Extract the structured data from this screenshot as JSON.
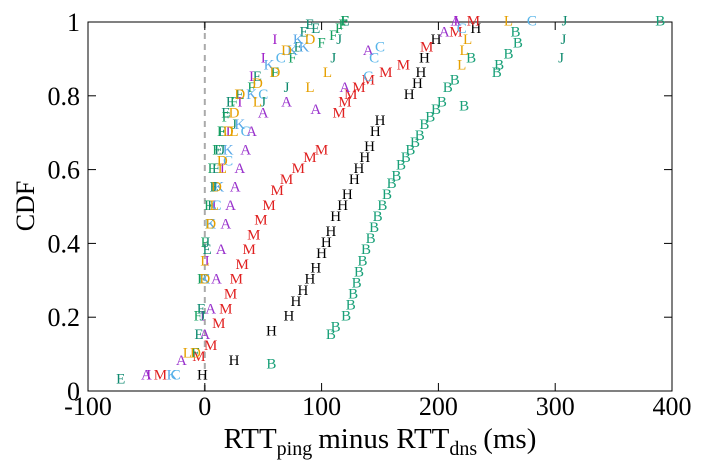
{
  "chart_data": {
    "type": "scatter",
    "ylabel": "CDF",
    "xlabel": [
      "RTT",
      "ping",
      "minus RTT",
      "dns",
      "(ms)"
    ],
    "xlim": [
      -100,
      400
    ],
    "xticks": [
      -100,
      0,
      100,
      200,
      300,
      400
    ],
    "ylim": [
      0,
      1
    ],
    "yticks": [
      0,
      0.2,
      0.4,
      0.6,
      0.8,
      1
    ],
    "vline": 0,
    "series": [
      {
        "name": "B",
        "color": "#18a078",
        "x": [
          57,
          108,
          112,
          121,
          125,
          127,
          130,
          132,
          135,
          138,
          142,
          145,
          148,
          152,
          156,
          160,
          164,
          168,
          172,
          176,
          180,
          184,
          188,
          193,
          198,
          203,
          208,
          214,
          222,
          228,
          250,
          252,
          260,
          268,
          266,
          390
        ],
        "y": [
          0.07,
          0.15,
          0.17,
          0.2,
          0.23,
          0.26,
          0.29,
          0.32,
          0.35,
          0.38,
          0.41,
          0.44,
          0.47,
          0.5,
          0.53,
          0.56,
          0.58,
          0.61,
          0.63,
          0.65,
          0.67,
          0.69,
          0.72,
          0.74,
          0.76,
          0.78,
          0.82,
          0.84,
          0.77,
          0.9,
          0.86,
          0.88,
          0.91,
          0.94,
          0.97,
          1.0
        ]
      },
      {
        "name": "H",
        "color": "#000000",
        "x": [
          -2,
          25,
          57,
          72,
          78,
          84,
          90,
          95,
          100,
          104,
          108,
          112,
          118,
          122,
          128,
          132,
          137,
          141,
          146,
          150,
          175,
          182,
          185,
          188,
          198,
          232
        ],
        "y": [
          0.04,
          0.08,
          0.16,
          0.2,
          0.24,
          0.27,
          0.3,
          0.33,
          0.37,
          0.4,
          0.43,
          0.47,
          0.5,
          0.53,
          0.57,
          0.6,
          0.63,
          0.66,
          0.7,
          0.73,
          0.8,
          0.83,
          0.86,
          0.9,
          0.95,
          0.98
        ]
      },
      {
        "name": "M",
        "color": "#e02020",
        "x": [
          -38,
          -5,
          5,
          12,
          18,
          22,
          27,
          32,
          38,
          42,
          48,
          55,
          62,
          70,
          80,
          90,
          100,
          115,
          120,
          125,
          132,
          140,
          155,
          170,
          190,
          215,
          230
        ],
        "y": [
          0.04,
          0.09,
          0.12,
          0.18,
          0.22,
          0.26,
          0.3,
          0.34,
          0.38,
          0.42,
          0.46,
          0.5,
          0.54,
          0.57,
          0.6,
          0.63,
          0.65,
          0.75,
          0.78,
          0.8,
          0.82,
          0.84,
          0.86,
          0.88,
          0.93,
          0.97,
          1.0
        ]
      },
      {
        "name": "A",
        "color": "#9932cc",
        "x": [
          -50,
          -20,
          0,
          5,
          10,
          14,
          18,
          22,
          26,
          30,
          35,
          40,
          50,
          70,
          95,
          120,
          140,
          205,
          215
        ],
        "y": [
          0.04,
          0.08,
          0.15,
          0.22,
          0.3,
          0.38,
          0.45,
          0.5,
          0.55,
          0.6,
          0.65,
          0.7,
          0.75,
          0.78,
          0.76,
          0.82,
          0.92,
          0.97,
          1.0
        ]
      },
      {
        "name": "E",
        "color": "#0f8a70",
        "x": [
          -72,
          -5,
          -3,
          -1,
          2,
          4,
          6,
          8,
          10,
          12,
          15,
          18,
          22,
          30,
          45,
          80,
          85,
          90,
          95,
          120
        ],
        "y": [
          0.03,
          0.15,
          0.22,
          0.3,
          0.38,
          0.45,
          0.5,
          0.55,
          0.6,
          0.65,
          0.7,
          0.75,
          0.78,
          0.8,
          0.85,
          0.93,
          0.97,
          0.99,
          0.98,
          1.0
        ]
      },
      {
        "name": "F",
        "color": "#14a060",
        "x": [
          -8,
          -6,
          -3,
          0,
          3,
          6,
          10,
          14,
          18,
          25,
          40,
          60,
          75,
          100,
          110,
          115,
          118,
          120
        ],
        "y": [
          0.1,
          0.2,
          0.3,
          0.4,
          0.5,
          0.6,
          0.65,
          0.7,
          0.74,
          0.78,
          0.82,
          0.86,
          0.9,
          0.94,
          0.96,
          0.98,
          0.99,
          1.0
        ]
      },
      {
        "name": "I",
        "color": "#a020c8",
        "x": [
          -48,
          -2,
          2,
          8,
          15,
          20,
          30,
          40,
          50,
          60,
          215
        ],
        "y": [
          0.04,
          0.2,
          0.35,
          0.5,
          0.6,
          0.7,
          0.78,
          0.85,
          0.9,
          0.95,
          1.0
        ]
      },
      {
        "name": "K",
        "color": "#5aa8e8",
        "x": [
          -28,
          0,
          5,
          12,
          20,
          30,
          40,
          55,
          75,
          80,
          85
        ],
        "y": [
          0.04,
          0.3,
          0.45,
          0.55,
          0.65,
          0.72,
          0.8,
          0.88,
          0.92,
          0.95,
          0.93
        ]
      },
      {
        "name": "C",
        "color": "#56b4e9",
        "x": [
          -25,
          0,
          10,
          20,
          35,
          50,
          65,
          140,
          145,
          150,
          220,
          280
        ],
        "y": [
          0.04,
          0.3,
          0.5,
          0.62,
          0.7,
          0.8,
          0.9,
          0.85,
          0.9,
          0.93,
          0.98,
          1.0
        ]
      },
      {
        "name": "D",
        "color": "#e69f00",
        "x": [
          -8,
          0,
          5,
          10,
          15,
          20,
          25,
          30,
          45,
          60,
          70,
          90
        ],
        "y": [
          0.1,
          0.3,
          0.45,
          0.55,
          0.62,
          0.7,
          0.75,
          0.8,
          0.83,
          0.86,
          0.92,
          0.95
        ]
      },
      {
        "name": "J",
        "color": "#0e8a6e",
        "x": [
          -2,
          2,
          8,
          15,
          25,
          50,
          70,
          110,
          115,
          305,
          307,
          308
        ],
        "y": [
          0.2,
          0.4,
          0.55,
          0.65,
          0.72,
          0.78,
          0.82,
          0.9,
          0.95,
          0.9,
          0.95,
          1.0
        ]
      },
      {
        "name": "L",
        "color": "#e6a000",
        "x": [
          -15,
          0,
          8,
          15,
          25,
          45,
          90,
          105,
          220,
          222,
          225,
          260
        ],
        "y": [
          0.1,
          0.35,
          0.5,
          0.6,
          0.7,
          0.78,
          0.82,
          0.86,
          0.88,
          0.92,
          0.95,
          1.0
        ]
      }
    ]
  }
}
